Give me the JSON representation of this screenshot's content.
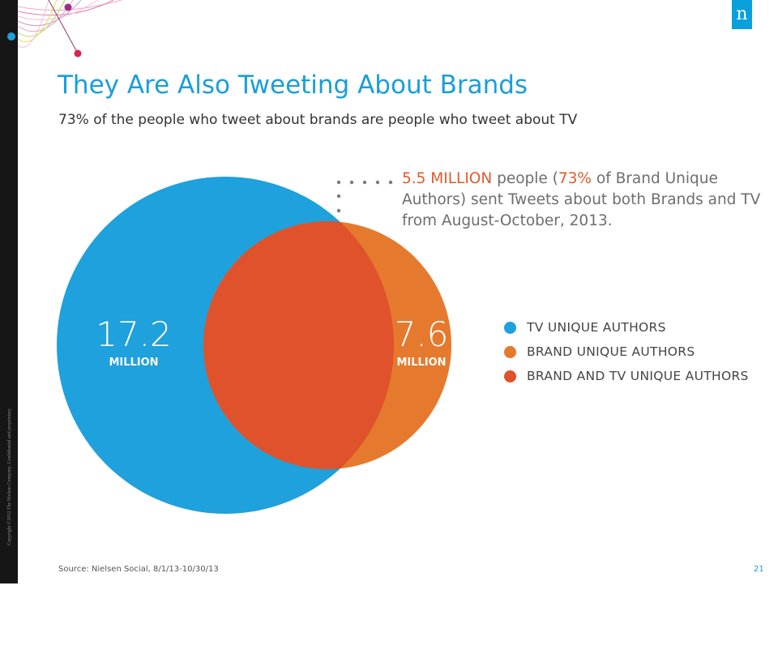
{
  "slide": {
    "title": "They Are Also Tweeting About Brands",
    "subtitle": "73% of the people who tweet about brands are people who tweet about TV",
    "logo_text": "n",
    "copyright": "Copyright ©2012 The Nielsen Company. Confidential and proprietary.",
    "source": "Source: Nielsen Social, 8/1/13-10/30/13",
    "page_number": "21"
  },
  "venn": {
    "tv": {
      "value": "17.2",
      "unit": "MILLION",
      "color": "#1ea1dc"
    },
    "brand": {
      "value": "7.6",
      "unit": "MILLION",
      "color": "#e57a2e"
    },
    "overlap_color": "#e0522b",
    "callout": {
      "highlight_1": "5.5 MILLION",
      "text_1": " people (",
      "highlight_2": "73%",
      "text_2": " of Brand Unique Authors) sent Tweets about both Brands and TV from August-October, 2013."
    }
  },
  "legend": [
    {
      "label": "TV UNIQUE AUTHORS",
      "color": "#1ea1dc"
    },
    {
      "label": "BRAND UNIQUE AUTHORS",
      "color": "#e57a2e"
    },
    {
      "label": "BRAND AND TV UNIQUE AUTHORS",
      "color": "#e0522b"
    }
  ]
}
